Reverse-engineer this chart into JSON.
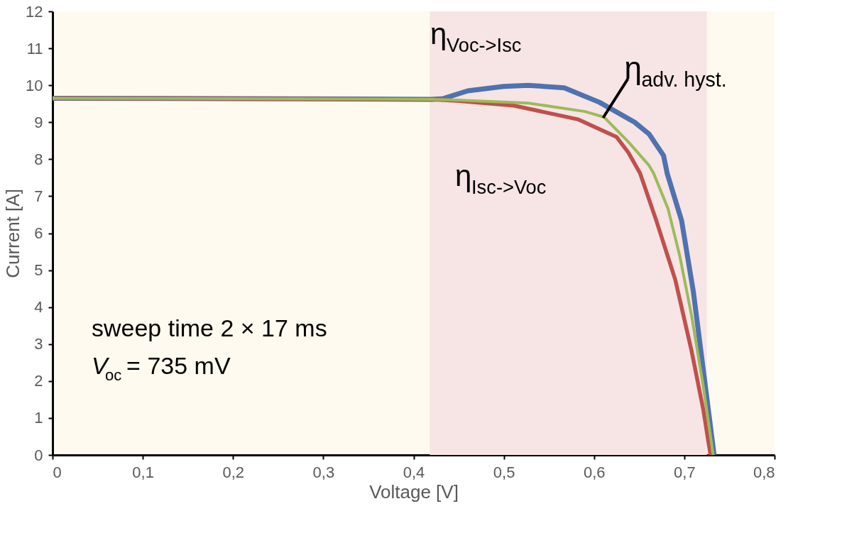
{
  "chart_data": {
    "type": "line",
    "xlabel": "Voltage [V]",
    "ylabel": "Current [A]",
    "xlim": [
      0,
      0.8
    ],
    "xticks": [
      0,
      {
        "value": 0.1,
        "label": "0,1"
      },
      {
        "value": 0.2,
        "label": "0,2"
      },
      {
        "value": 0.3,
        "label": "0,3"
      },
      {
        "value": 0.4,
        "label": "0,4"
      },
      {
        "value": 0.5,
        "label": "0,5"
      },
      {
        "value": 0.6,
        "label": "0,6"
      },
      {
        "value": 0.7,
        "label": "0,7"
      },
      {
        "value": 0.8,
        "label": "0,8"
      }
    ],
    "ylim": [
      0,
      12
    ],
    "yticks": [
      0,
      1,
      2,
      3,
      4,
      5,
      6,
      7,
      8,
      9,
      10,
      11,
      12
    ],
    "grid": false,
    "marker": "none",
    "line_style": "solid",
    "bands": [
      {
        "axis": "x",
        "from": 0.418,
        "to": 0.725,
        "color": "#f7e4e4"
      }
    ],
    "series": [
      {
        "color": "#4f72b0",
        "x": [
          0,
          0.2,
          0.42,
          0.433,
          0.46,
          0.5,
          0.527,
          0.567,
          0.606,
          0.645,
          0.661,
          0.677,
          0.681,
          0.697,
          0.71,
          0.72,
          0.733
        ],
        "values": [
          9.65,
          9.64,
          9.62,
          9.64,
          9.85,
          9.97,
          10.0,
          9.93,
          9.54,
          9.0,
          8.68,
          8.1,
          7.62,
          6.34,
          4.42,
          2.5,
          0
        ]
      },
      {
        "color": "#c0504d",
        "x": [
          0,
          0.2,
          0.42,
          0.448,
          0.511,
          0.582,
          0.625,
          0.638,
          0.651,
          0.669,
          0.69,
          0.708,
          0.721,
          0.729
        ],
        "values": [
          9.65,
          9.64,
          9.62,
          9.58,
          9.45,
          9.08,
          8.6,
          8.18,
          7.62,
          6.34,
          4.74,
          2.82,
          1.23,
          0
        ]
      },
      {
        "color": "#9bbb59",
        "x": [
          0,
          0.2,
          0.42,
          0.448,
          0.527,
          0.59,
          0.611,
          0.638,
          0.661,
          0.666,
          0.682,
          0.695,
          0.708,
          0.721,
          0.732
        ],
        "values": [
          9.65,
          9.64,
          9.62,
          9.6,
          9.52,
          9.29,
          9.14,
          8.47,
          7.83,
          7.62,
          6.66,
          5.38,
          3.78,
          1.86,
          0
        ]
      }
    ],
    "annotations": [
      "η$_{Voc->Isc}$",
      {
        "text": "η$_{adv. hyst.}$",
        "x": 0.61,
        "y": 9.12
      },
      "η$_{Isc->Voc}$",
      "sweep time 2 × 17 ms",
      "V$_{oc}$ = 735 mV"
    ]
  }
}
